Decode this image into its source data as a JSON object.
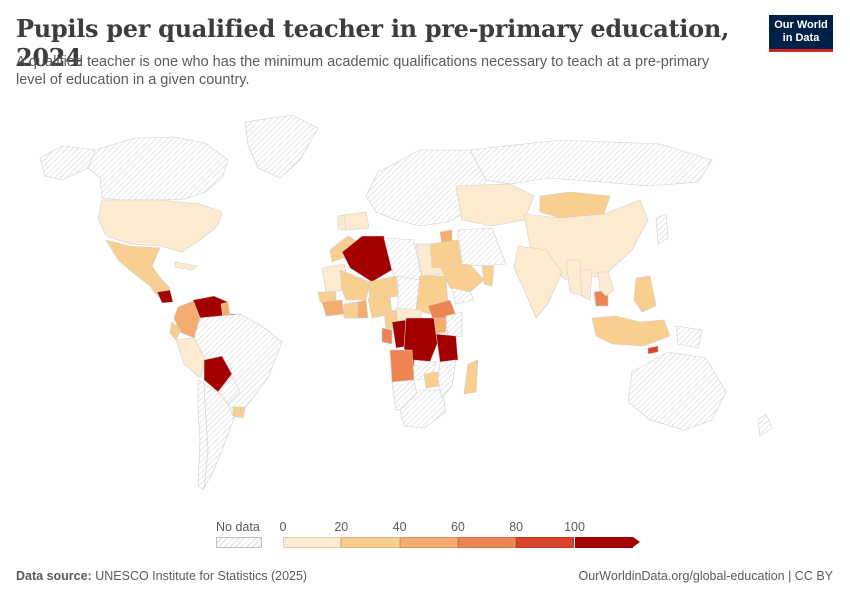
{
  "header": {
    "title": "Pupils per qualified teacher in pre-primary education, 2024",
    "subtitle": "A qualified teacher is one who has the minimum academic qualifications necessary to teach at a pre-primary level of education in a given country."
  },
  "logo": {
    "line1": "Our World",
    "line2": "in Data",
    "background": "#002147",
    "accent": "#ce261e"
  },
  "legend": {
    "no_data_label": "No data",
    "ticks": [
      "0",
      "20",
      "40",
      "60",
      "80",
      "100"
    ],
    "bins": [
      {
        "range": "0–20",
        "color": "#fdebd0"
      },
      {
        "range": "20–40",
        "color": "#f9cf8f"
      },
      {
        "range": "40–60",
        "color": "#f4ad6e"
      },
      {
        "range": "60–80",
        "color": "#ee8452"
      },
      {
        "range": "80–100",
        "color": "#d8432d"
      },
      {
        "range": "100+",
        "color": "#a50000"
      }
    ]
  },
  "map_data": {
    "type": "choropleth",
    "no_data_color": "#e6e6e6",
    "regions": [
      {
        "name": "Canada",
        "bin": null
      },
      {
        "name": "Alaska",
        "bin": null
      },
      {
        "name": "Greenland",
        "bin": null
      },
      {
        "name": "United States",
        "bin": 0
      },
      {
        "name": "Mexico",
        "bin": 1
      },
      {
        "name": "Central America",
        "bin": 1
      },
      {
        "name": "Cuba",
        "bin": 0
      },
      {
        "name": "Nicaragua",
        "bin": 5
      },
      {
        "name": "Colombia",
        "bin": 2
      },
      {
        "name": "Venezuela",
        "bin": 5
      },
      {
        "name": "Guyana",
        "bin": 2
      },
      {
        "name": "Suriname",
        "bin": 5
      },
      {
        "name": "Ecuador",
        "bin": 1
      },
      {
        "name": "Peru",
        "bin": 0
      },
      {
        "name": "Brazil",
        "bin": null
      },
      {
        "name": "Bolivia",
        "bin": 5
      },
      {
        "name": "Paraguay",
        "bin": null
      },
      {
        "name": "Uruguay",
        "bin": 1
      },
      {
        "name": "Argentina",
        "bin": null
      },
      {
        "name": "Chile",
        "bin": null
      },
      {
        "name": "Europe",
        "bin": null
      },
      {
        "name": "Spain",
        "bin": 0
      },
      {
        "name": "Portugal",
        "bin": 0
      },
      {
        "name": "Morocco",
        "bin": 1
      },
      {
        "name": "Algeria",
        "bin": 5
      },
      {
        "name": "Libya",
        "bin": null
      },
      {
        "name": "Egypt",
        "bin": 0
      },
      {
        "name": "Mauritania",
        "bin": 0
      },
      {
        "name": "Mali",
        "bin": 1
      },
      {
        "name": "Niger",
        "bin": 1
      },
      {
        "name": "Chad",
        "bin": null
      },
      {
        "name": "Sudan",
        "bin": 1
      },
      {
        "name": "Ethiopia",
        "bin": 3
      },
      {
        "name": "Senegal",
        "bin": 1
      },
      {
        "name": "Guinea",
        "bin": 2
      },
      {
        "name": "Cote d'Ivoire",
        "bin": 1
      },
      {
        "name": "Ghana",
        "bin": 2
      },
      {
        "name": "Nigeria",
        "bin": 1
      },
      {
        "name": "Cameroon",
        "bin": 1
      },
      {
        "name": "Central African Republic",
        "bin": 0
      },
      {
        "name": "Gabon",
        "bin": 3
      },
      {
        "name": "Congo",
        "bin": 5
      },
      {
        "name": "DR Congo",
        "bin": 5
      },
      {
        "name": "Uganda",
        "bin": 2
      },
      {
        "name": "Kenya",
        "bin": null
      },
      {
        "name": "Tanzania",
        "bin": 5
      },
      {
        "name": "Angola",
        "bin": 3
      },
      {
        "name": "Zambia",
        "bin": null
      },
      {
        "name": "Zimbabwe",
        "bin": 1
      },
      {
        "name": "Namibia",
        "bin": null
      },
      {
        "name": "South Africa",
        "bin": null
      },
      {
        "name": "Mozambique",
        "bin": null
      },
      {
        "name": "Madagascar",
        "bin": 1
      },
      {
        "name": "Jordan",
        "bin": 2
      },
      {
        "name": "Iraq",
        "bin": 1
      },
      {
        "name": "Saudi Arabia",
        "bin": 1
      },
      {
        "name": "Oman",
        "bin": 1
      },
      {
        "name": "Yemen",
        "bin": null
      },
      {
        "name": "Iran",
        "bin": null
      },
      {
        "name": "Central Asia",
        "bin": 0
      },
      {
        "name": "Russia",
        "bin": null
      },
      {
        "name": "Mongolia",
        "bin": 1
      },
      {
        "name": "China",
        "bin": 0
      },
      {
        "name": "India",
        "bin": 0
      },
      {
        "name": "Myanmar",
        "bin": 0
      },
      {
        "name": "Thailand",
        "bin": 0
      },
      {
        "name": "Cambodia",
        "bin": 3
      },
      {
        "name": "Vietnam",
        "bin": 0
      },
      {
        "name": "Philippines",
        "bin": 1
      },
      {
        "name": "Indonesia",
        "bin": 1
      },
      {
        "name": "Timor-Leste",
        "bin": 4
      },
      {
        "name": "Papua New Guinea",
        "bin": null
      },
      {
        "name": "Japan",
        "bin": null
      },
      {
        "name": "Australia",
        "bin": null
      },
      {
        "name": "New Zealand",
        "bin": null
      }
    ]
  },
  "footer": {
    "source_label": "Data source:",
    "source_text": "UNESCO Institute for Statistics (2025)",
    "right_text": "OurWorldinData.org/global-education | CC BY"
  }
}
